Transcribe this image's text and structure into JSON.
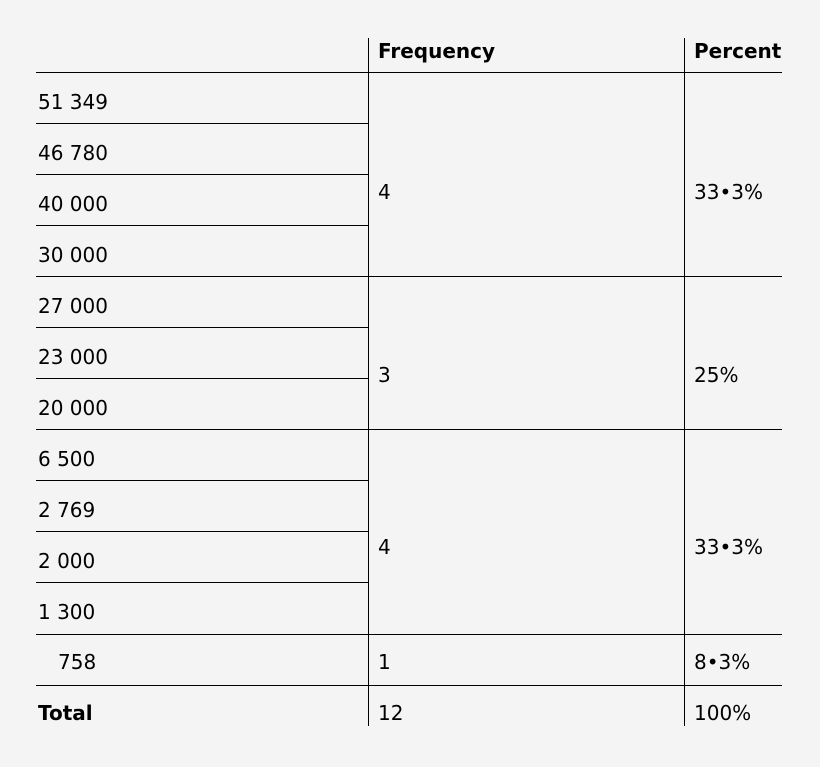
{
  "table": {
    "headers": {
      "value": "",
      "frequency": "Frequency",
      "percent": "Percent"
    },
    "values": [
      "51 349",
      "46 780",
      "40 000",
      "30 000",
      "27 000",
      "23 000",
      "20 000",
      "6 500",
      "2 769",
      "2 000",
      "1 300",
      "758"
    ],
    "groups": [
      {
        "frequency": "4",
        "percent": "33•3%"
      },
      {
        "frequency": "3",
        "percent": "25%"
      },
      {
        "frequency": "4",
        "percent": "33•3%"
      },
      {
        "frequency": "1",
        "percent": "8•3%"
      }
    ],
    "total": {
      "label": "Total",
      "frequency": "12",
      "percent": "100%"
    }
  }
}
